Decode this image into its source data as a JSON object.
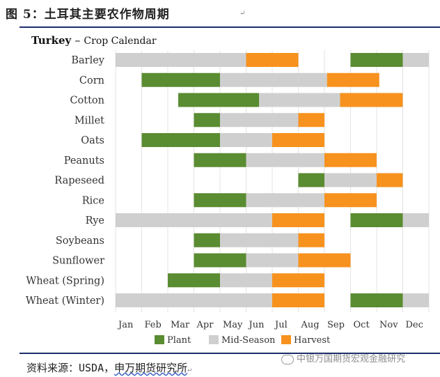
{
  "figure": {
    "title": "图 5：土耳其主要农作物周期",
    "source_label": "资料来源：USDA，",
    "source_org": "申万期货研究所",
    "watermark": "中银万国期货宏观金融研究"
  },
  "chart_data": {
    "type": "bar",
    "subtype": "gantt-calendar",
    "title_bold": "Turkey",
    "title_rest": "Crop Calendar",
    "months": [
      "Jan",
      "Feb",
      "Mar",
      "Apr",
      "May",
      "Jun",
      "Jul",
      "Aug",
      "Sep",
      "Oct",
      "Nov",
      "Dec"
    ],
    "xlim": [
      0,
      12
    ],
    "grid": true,
    "legend_placement": "bottom",
    "colors": {
      "Plant": "#5a8c31",
      "Mid-Season": "#d0cfcf",
      "Harvest": "#f7921e"
    },
    "legend": [
      "Plant",
      "Mid-Season",
      "Harvest"
    ],
    "crops": [
      {
        "name": "Barley",
        "segments": [
          {
            "phase": "Mid-Season",
            "start": 0,
            "end": 5.0
          },
          {
            "phase": "Harvest",
            "start": 5.0,
            "end": 7.0
          },
          {
            "phase": "Plant",
            "start": 9.0,
            "end": 11.0
          },
          {
            "phase": "Mid-Season",
            "start": 11.0,
            "end": 12.0
          }
        ]
      },
      {
        "name": "Corn",
        "segments": [
          {
            "phase": "Plant",
            "start": 1.0,
            "end": 4.0
          },
          {
            "phase": "Mid-Season",
            "start": 4.0,
            "end": 8.1
          },
          {
            "phase": "Harvest",
            "start": 8.1,
            "end": 10.1
          }
        ]
      },
      {
        "name": "Cotton",
        "segments": [
          {
            "phase": "Plant",
            "start": 2.4,
            "end": 5.5
          },
          {
            "phase": "Mid-Season",
            "start": 5.5,
            "end": 8.6
          },
          {
            "phase": "Harvest",
            "start": 8.6,
            "end": 11.0
          }
        ]
      },
      {
        "name": "Millet",
        "segments": [
          {
            "phase": "Plant",
            "start": 3.0,
            "end": 4.0
          },
          {
            "phase": "Mid-Season",
            "start": 4.0,
            "end": 7.0
          },
          {
            "phase": "Harvest",
            "start": 7.0,
            "end": 8.0
          }
        ]
      },
      {
        "name": "Oats",
        "segments": [
          {
            "phase": "Plant",
            "start": 1.0,
            "end": 4.0
          },
          {
            "phase": "Mid-Season",
            "start": 4.0,
            "end": 6.0
          },
          {
            "phase": "Harvest",
            "start": 6.0,
            "end": 8.0
          }
        ]
      },
      {
        "name": "Peanuts",
        "segments": [
          {
            "phase": "Plant",
            "start": 3.0,
            "end": 5.0
          },
          {
            "phase": "Mid-Season",
            "start": 5.0,
            "end": 8.0
          },
          {
            "phase": "Harvest",
            "start": 8.0,
            "end": 10.0
          }
        ]
      },
      {
        "name": "Rapeseed",
        "segments": [
          {
            "phase": "Plant",
            "start": 7.0,
            "end": 8.0
          },
          {
            "phase": "Mid-Season",
            "start": 8.0,
            "end": 10.0
          },
          {
            "phase": "Harvest",
            "start": 10.0,
            "end": 11.0
          }
        ]
      },
      {
        "name": "Rice",
        "segments": [
          {
            "phase": "Plant",
            "start": 3.0,
            "end": 5.0
          },
          {
            "phase": "Mid-Season",
            "start": 5.0,
            "end": 8.0
          },
          {
            "phase": "Harvest",
            "start": 8.0,
            "end": 10.0
          }
        ]
      },
      {
        "name": "Rye",
        "segments": [
          {
            "phase": "Mid-Season",
            "start": 0,
            "end": 6.0
          },
          {
            "phase": "Harvest",
            "start": 6.0,
            "end": 8.0
          },
          {
            "phase": "Plant",
            "start": 9.0,
            "end": 11.0
          },
          {
            "phase": "Mid-Season",
            "start": 11.0,
            "end": 12.0
          }
        ]
      },
      {
        "name": "Soybeans",
        "segments": [
          {
            "phase": "Plant",
            "start": 3.0,
            "end": 4.0
          },
          {
            "phase": "Mid-Season",
            "start": 4.0,
            "end": 7.0
          },
          {
            "phase": "Harvest",
            "start": 7.0,
            "end": 8.0
          }
        ]
      },
      {
        "name": "Sunflower",
        "segments": [
          {
            "phase": "Plant",
            "start": 3.0,
            "end": 5.0
          },
          {
            "phase": "Mid-Season",
            "start": 5.0,
            "end": 7.0
          },
          {
            "phase": "Harvest",
            "start": 7.0,
            "end": 9.0
          }
        ]
      },
      {
        "name": "Wheat (Spring)",
        "segments": [
          {
            "phase": "Plant",
            "start": 2.0,
            "end": 4.0
          },
          {
            "phase": "Mid-Season",
            "start": 4.0,
            "end": 6.0
          },
          {
            "phase": "Harvest",
            "start": 6.0,
            "end": 8.0
          }
        ]
      },
      {
        "name": "Wheat (Winter)",
        "segments": [
          {
            "phase": "Mid-Season",
            "start": 0,
            "end": 6.0
          },
          {
            "phase": "Harvest",
            "start": 6.0,
            "end": 8.0
          },
          {
            "phase": "Plant",
            "start": 9.0,
            "end": 11.0
          },
          {
            "phase": "Mid-Season",
            "start": 11.0,
            "end": 12.0
          }
        ]
      }
    ]
  }
}
